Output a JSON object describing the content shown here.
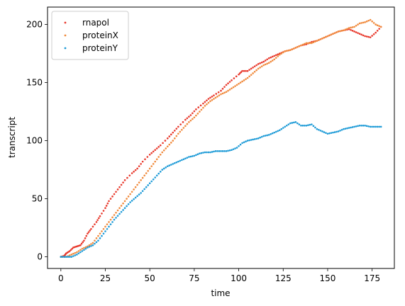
{
  "chart_data": {
    "type": "scatter",
    "title": "",
    "xlabel": "time",
    "ylabel": "transcript",
    "xlim": [
      -7.5,
      187.5
    ],
    "ylim": [
      -10,
      215
    ],
    "xticks": [
      0,
      25,
      50,
      75,
      100,
      125,
      150,
      175
    ],
    "yticks": [
      0,
      50,
      100,
      150,
      200
    ],
    "grid": false,
    "legend_position": "top-left",
    "series": [
      {
        "name": "rnapol",
        "color": "#e8392c",
        "points": [
          [
            0,
            0
          ],
          [
            2,
            1
          ],
          [
            3,
            3
          ],
          [
            5,
            5
          ],
          [
            7,
            8
          ],
          [
            9,
            9
          ],
          [
            11,
            10
          ],
          [
            13,
            14
          ],
          [
            15,
            20
          ],
          [
            17,
            24
          ],
          [
            20,
            30
          ],
          [
            22,
            35
          ],
          [
            25,
            42
          ],
          [
            27,
            48
          ],
          [
            30,
            54
          ],
          [
            33,
            60
          ],
          [
            36,
            66
          ],
          [
            40,
            72
          ],
          [
            43,
            76
          ],
          [
            46,
            82
          ],
          [
            50,
            88
          ],
          [
            53,
            92
          ],
          [
            56,
            96
          ],
          [
            60,
            102
          ],
          [
            63,
            107
          ],
          [
            66,
            112
          ],
          [
            70,
            118
          ],
          [
            73,
            122
          ],
          [
            76,
            127
          ],
          [
            80,
            132
          ],
          [
            83,
            136
          ],
          [
            86,
            139
          ],
          [
            90,
            143
          ],
          [
            93,
            148
          ],
          [
            96,
            152
          ],
          [
            100,
            157
          ],
          [
            102,
            160
          ],
          [
            105,
            160
          ],
          [
            108,
            163
          ],
          [
            111,
            166
          ],
          [
            114,
            168
          ],
          [
            117,
            171
          ],
          [
            120,
            173
          ],
          [
            123,
            175
          ],
          [
            126,
            177
          ],
          [
            129,
            178
          ],
          [
            132,
            180
          ],
          [
            135,
            182
          ],
          [
            138,
            183
          ],
          [
            141,
            185
          ],
          [
            144,
            186
          ],
          [
            147,
            188
          ],
          [
            150,
            190
          ],
          [
            153,
            192
          ],
          [
            156,
            194
          ],
          [
            159,
            195
          ],
          [
            162,
            196
          ],
          [
            165,
            194
          ],
          [
            168,
            192
          ],
          [
            171,
            190
          ],
          [
            174,
            189
          ],
          [
            177,
            193
          ],
          [
            180,
            198
          ]
        ]
      },
      {
        "name": "proteinX",
        "color": "#f08a3c",
        "points": [
          [
            0,
            0
          ],
          [
            3,
            0
          ],
          [
            6,
            2
          ],
          [
            9,
            4
          ],
          [
            12,
            7
          ],
          [
            15,
            9
          ],
          [
            18,
            12
          ],
          [
            21,
            18
          ],
          [
            24,
            24
          ],
          [
            27,
            30
          ],
          [
            30,
            36
          ],
          [
            33,
            42
          ],
          [
            36,
            48
          ],
          [
            39,
            54
          ],
          [
            42,
            60
          ],
          [
            45,
            66
          ],
          [
            48,
            72
          ],
          [
            51,
            78
          ],
          [
            54,
            84
          ],
          [
            57,
            90
          ],
          [
            60,
            95
          ],
          [
            63,
            100
          ],
          [
            66,
            106
          ],
          [
            69,
            111
          ],
          [
            72,
            116
          ],
          [
            75,
            120
          ],
          [
            78,
            125
          ],
          [
            81,
            130
          ],
          [
            84,
            134
          ],
          [
            87,
            137
          ],
          [
            90,
            140
          ],
          [
            93,
            142
          ],
          [
            96,
            145
          ],
          [
            99,
            148
          ],
          [
            102,
            151
          ],
          [
            105,
            154
          ],
          [
            108,
            158
          ],
          [
            111,
            162
          ],
          [
            114,
            165
          ],
          [
            117,
            167
          ],
          [
            120,
            170
          ],
          [
            123,
            174
          ],
          [
            126,
            177
          ],
          [
            129,
            178
          ],
          [
            132,
            180
          ],
          [
            135,
            182
          ],
          [
            138,
            184
          ],
          [
            141,
            184
          ],
          [
            144,
            186
          ],
          [
            147,
            188
          ],
          [
            150,
            190
          ],
          [
            153,
            192
          ],
          [
            156,
            194
          ],
          [
            159,
            195
          ],
          [
            162,
            197
          ],
          [
            165,
            198
          ],
          [
            168,
            201
          ],
          [
            171,
            202
          ],
          [
            174,
            204
          ],
          [
            177,
            200
          ],
          [
            180,
            198
          ]
        ]
      },
      {
        "name": "proteinY",
        "color": "#1e9bd7",
        "points": [
          [
            0,
            0
          ],
          [
            3,
            0
          ],
          [
            6,
            0
          ],
          [
            9,
            2
          ],
          [
            12,
            5
          ],
          [
            15,
            8
          ],
          [
            18,
            10
          ],
          [
            21,
            14
          ],
          [
            24,
            20
          ],
          [
            27,
            26
          ],
          [
            30,
            32
          ],
          [
            33,
            37
          ],
          [
            36,
            42
          ],
          [
            39,
            47
          ],
          [
            42,
            51
          ],
          [
            45,
            55
          ],
          [
            48,
            60
          ],
          [
            51,
            65
          ],
          [
            54,
            70
          ],
          [
            57,
            75
          ],
          [
            60,
            78
          ],
          [
            63,
            80
          ],
          [
            66,
            82
          ],
          [
            69,
            84
          ],
          [
            72,
            86
          ],
          [
            75,
            87
          ],
          [
            78,
            89
          ],
          [
            81,
            90
          ],
          [
            84,
            90
          ],
          [
            87,
            91
          ],
          [
            90,
            91
          ],
          [
            93,
            91
          ],
          [
            96,
            92
          ],
          [
            99,
            94
          ],
          [
            102,
            98
          ],
          [
            105,
            100
          ],
          [
            108,
            101
          ],
          [
            111,
            102
          ],
          [
            114,
            104
          ],
          [
            117,
            105
          ],
          [
            120,
            107
          ],
          [
            123,
            109
          ],
          [
            126,
            112
          ],
          [
            129,
            115
          ],
          [
            132,
            116
          ],
          [
            135,
            113
          ],
          [
            138,
            113
          ],
          [
            141,
            114
          ],
          [
            144,
            110
          ],
          [
            147,
            108
          ],
          [
            150,
            106
          ],
          [
            153,
            107
          ],
          [
            156,
            108
          ],
          [
            159,
            110
          ],
          [
            162,
            111
          ],
          [
            165,
            112
          ],
          [
            168,
            113
          ],
          [
            171,
            113
          ],
          [
            174,
            112
          ],
          [
            177,
            112
          ],
          [
            180,
            112
          ]
        ]
      }
    ]
  }
}
